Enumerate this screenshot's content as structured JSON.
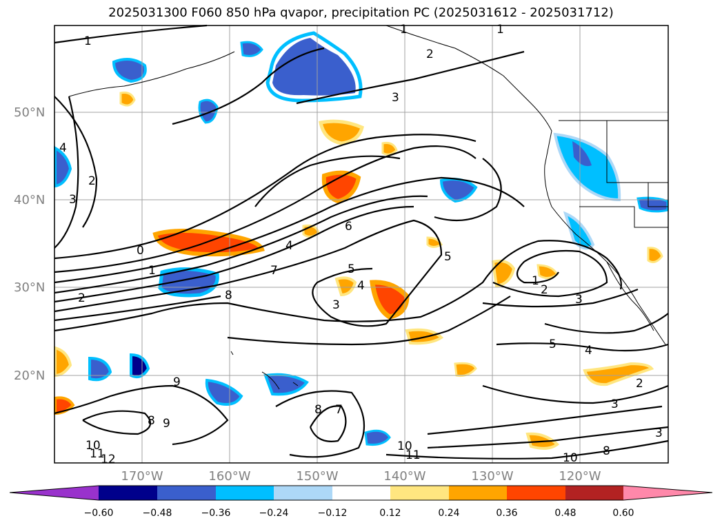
{
  "title": "2025031300 F060 850 hPa qvapor, precipitation PC (2025031612 - 2025031712)",
  "lat_labels": [
    "50°N",
    "40°N",
    "30°N",
    "20°N"
  ],
  "lon_labels": [
    "170°W",
    "160°W",
    "150°W",
    "140°W",
    "130°W",
    "120°W"
  ],
  "colorbar": {
    "ticks": [
      "−0.60",
      "−0.48",
      "−0.36",
      "−0.24",
      "−0.12",
      "0.12",
      "0.24",
      "0.36",
      "0.48",
      "0.60"
    ],
    "colors": [
      "#9932cc",
      "#00008b",
      "#3a5fcd",
      "#00bfff",
      "#add8f7",
      "#ffffff",
      "#ffe680",
      "#ffa500",
      "#ff4500",
      "#b22222",
      "#ff88aa"
    ]
  },
  "contour_labels": [
    "1",
    "1",
    "2",
    "3",
    "1",
    "4",
    "2",
    "3",
    "0",
    "1",
    "2",
    "6",
    "7",
    "8",
    "5",
    "4",
    "3",
    "5",
    "4",
    "2",
    "1",
    "3",
    "5",
    "4",
    "2",
    "3",
    "9",
    "8",
    "9",
    "8",
    "7",
    "10",
    "11",
    "12",
    "10",
    "11",
    "10",
    "8",
    "3"
  ]
}
